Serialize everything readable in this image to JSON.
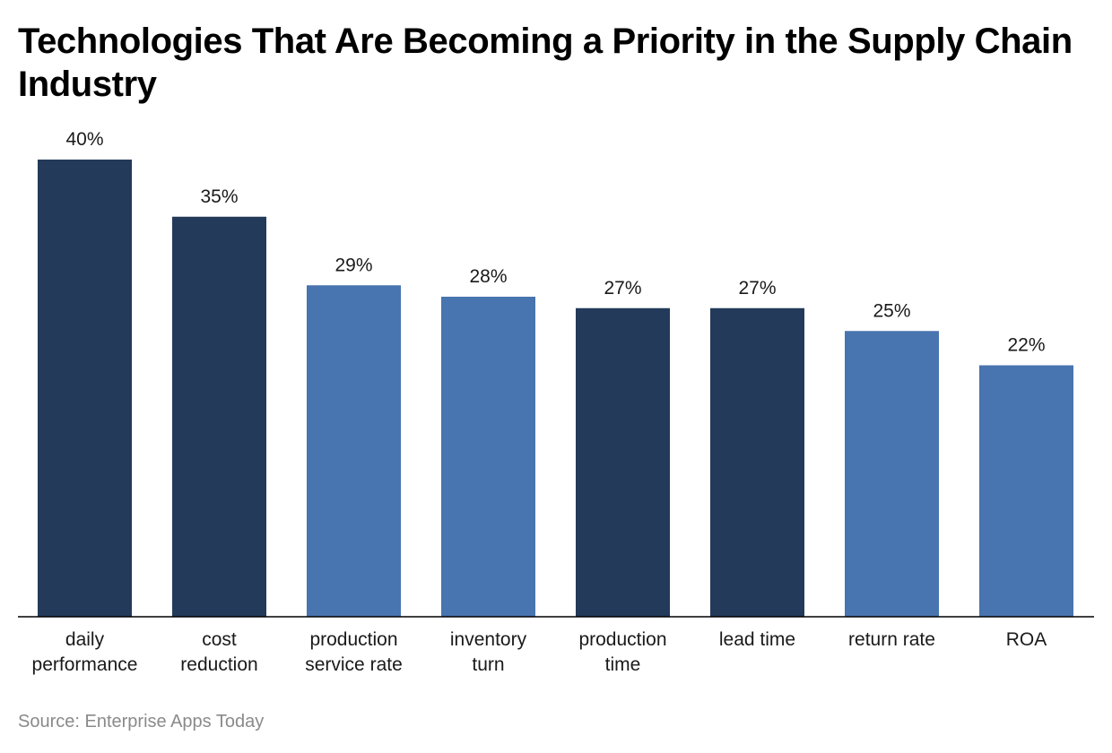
{
  "chart_data": {
    "type": "bar",
    "title": "Technologies That Are Becoming a Priority in the Supply Chain Industry",
    "xlabel": "",
    "ylabel": "",
    "ylim": [
      0,
      40
    ],
    "grid": false,
    "legend": "none",
    "categories": [
      [
        "daily",
        "performance"
      ],
      [
        "cost",
        "reduction"
      ],
      [
        "production",
        "service rate"
      ],
      [
        "inventory",
        "turn"
      ],
      [
        "production",
        "time"
      ],
      [
        "lead time"
      ],
      [
        "return rate"
      ],
      [
        "ROA"
      ]
    ],
    "values": [
      40,
      35,
      29,
      28,
      27,
      27,
      25,
      22
    ],
    "value_labels": [
      "40%",
      "35%",
      "29%",
      "28%",
      "27%",
      "27%",
      "25%",
      "22%"
    ],
    "bar_colors": [
      "#233a5a",
      "#233a5a",
      "#4874af",
      "#4874af",
      "#233a5a",
      "#233a5a",
      "#4874af",
      "#4874af"
    ]
  },
  "source": "Source: Enterprise Apps Today",
  "colors": {
    "axis": "#000000",
    "label_text": "#1a1a1a",
    "source_text": "#8a8a8a"
  }
}
